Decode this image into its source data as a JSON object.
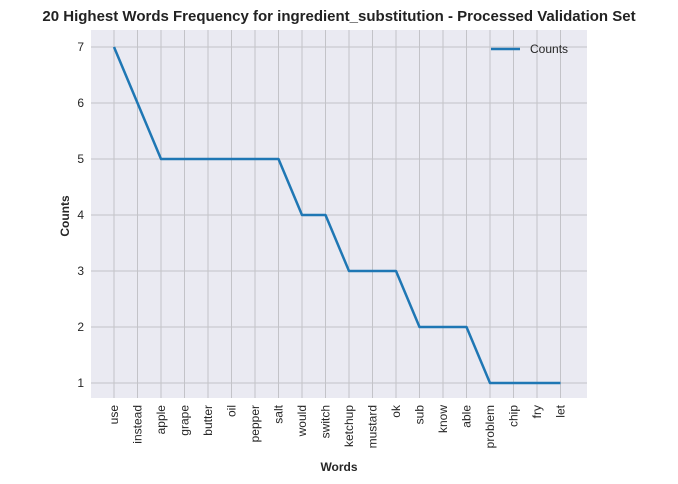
{
  "chart_data": {
    "type": "line",
    "title": "20 Highest Words Frequency for ingredient_substitution - Processed Validation Set",
    "xlabel": "Words",
    "ylabel": "Counts",
    "categories": [
      "use",
      "instead",
      "apple",
      "grape",
      "butter",
      "oil",
      "pepper",
      "salt",
      "would",
      "switch",
      "ketchup",
      "mustard",
      "ok",
      "sub",
      "know",
      "able",
      "problem",
      "chip",
      "fry",
      "let"
    ],
    "series": [
      {
        "name": "Counts",
        "values": [
          7,
          6,
          5,
          5,
          5,
          5,
          5,
          5,
          4,
          4,
          3,
          3,
          3,
          2,
          2,
          2,
          1,
          1,
          1,
          1
        ],
        "color": "#1f77b4"
      }
    ],
    "yticks": [
      1,
      2,
      3,
      4,
      5,
      6,
      7
    ],
    "ylim": [
      0.7,
      7.3
    ],
    "grid": true,
    "legend_position": "top-right",
    "colors": {
      "plot_background": "#eaeaf2",
      "grid": "#c3c3c8"
    }
  }
}
